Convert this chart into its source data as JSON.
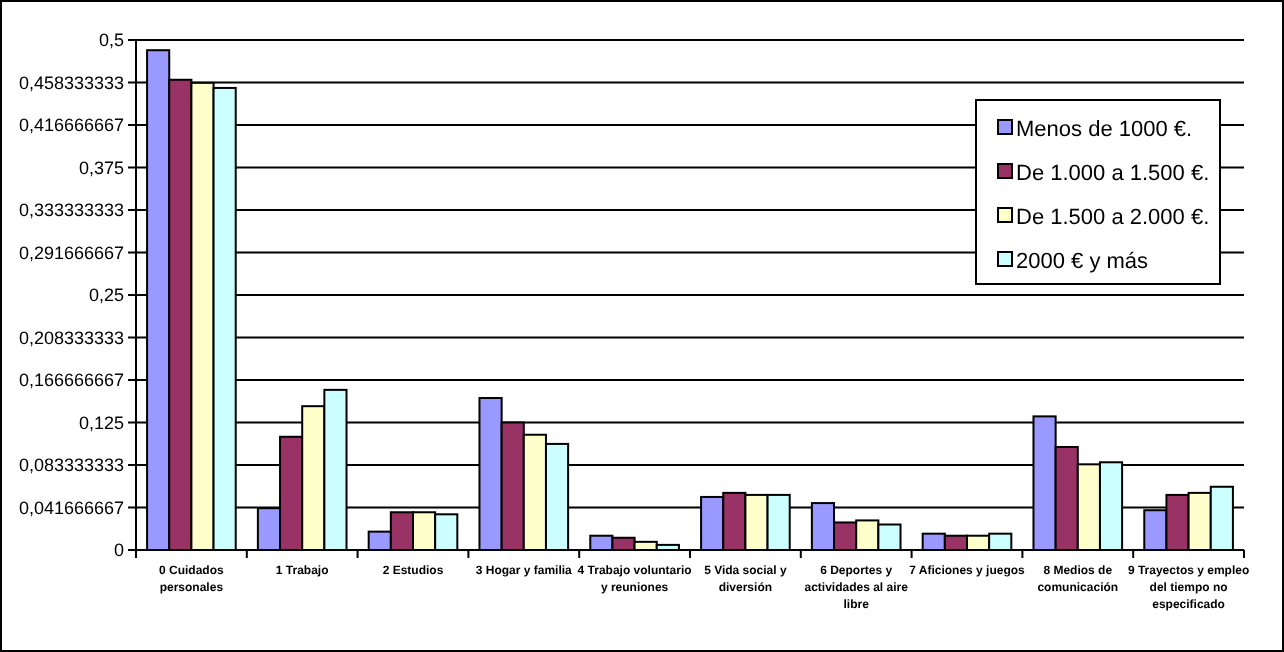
{
  "chart_data": {
    "type": "bar",
    "categories": [
      "0 Cuidados personales",
      "1 Trabajo",
      "2 Estudios",
      "3 Hogar y familia",
      "4 Trabajo voluntario y reuniones",
      "5 Vida social y diversión",
      "6 Deportes y actividades al aire libre",
      "7 Aficiones y juegos",
      "8 Medios de comunicación",
      "9 Trayectos y empleo del tiempo no especificado"
    ],
    "series": [
      {
        "name": "Menos de 1000 €.",
        "color": "#9999ff",
        "values": [
          0.49,
          0.041,
          0.018,
          0.149,
          0.014,
          0.052,
          0.046,
          0.016,
          0.131,
          0.039
        ]
      },
      {
        "name": "De 1.000 a 1.500 €.",
        "color": "#993366",
        "values": [
          0.461,
          0.111,
          0.037,
          0.125,
          0.012,
          0.056,
          0.027,
          0.014,
          0.101,
          0.054
        ]
      },
      {
        "name": "De 1.500 a 2.000 €.",
        "color": "#ffffcc",
        "values": [
          0.458,
          0.141,
          0.037,
          0.113,
          0.008,
          0.054,
          0.029,
          0.014,
          0.084,
          0.056
        ]
      },
      {
        "name": "2000 € y más",
        "color": "#ccffff",
        "values": [
          0.453,
          0.157,
          0.035,
          0.104,
          0.005,
          0.054,
          0.025,
          0.016,
          0.086,
          0.062
        ]
      }
    ],
    "ylim": [
      0,
      0.5
    ],
    "yticks": [
      0,
      {
        "value": 0.041666667,
        "label": "0,041666667"
      },
      {
        "value": 0.083333333,
        "label": "0,083333333"
      },
      {
        "value": 0.125,
        "label": "0,125"
      },
      {
        "value": 0.166666667,
        "label": "0,166666667"
      },
      {
        "value": 0.208333333,
        "label": "0,208333333"
      },
      {
        "value": 0.25,
        "label": "0,25"
      },
      {
        "value": 0.291666667,
        "label": "0,291666667"
      },
      {
        "value": 0.333333333,
        "label": "0,333333333"
      },
      {
        "value": 0.375,
        "label": "0,375"
      },
      {
        "value": 0.416666667,
        "label": "0,416666667"
      },
      {
        "value": 0.458333333,
        "label": "0,458333333"
      },
      {
        "value": 0.5,
        "label": "0,5"
      }
    ],
    "grid": "y",
    "legend": "top right"
  }
}
